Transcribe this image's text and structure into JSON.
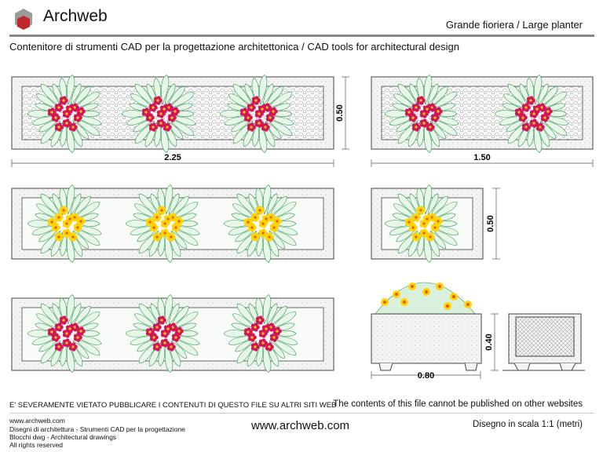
{
  "header": {
    "logo_text": "Archweb",
    "sheet_title": "Grande fioriera  /  Large planter",
    "subtitle": "Contenitore di strumenti CAD per la progettazione architettonica  /  CAD tools for architectural design"
  },
  "dimensions": {
    "top_large_width": "2.25",
    "top_depth": "0.50",
    "top_small_width": "1.50",
    "small_depth": "0.50",
    "elev_height": "0.40",
    "elev_width": "0.80"
  },
  "colors": {
    "pink_flower": "#d4145a",
    "yellow_flower": "#ffd400",
    "flower_center": "#e85a00",
    "leaf": "#2e9a4e",
    "concrete": "#f2f2f2",
    "logo_red": "#c0272d"
  },
  "footer": {
    "warning_it": "E' SEVERAMENTE VIETATO PUBBLICARE I CONTENUTI DI QUESTO FILE SU ALTRI SITI WEB",
    "warning_en": "The contents of this file cannot be published on other websites",
    "lines": [
      "www.archweb.com",
      "Disegni di architettura - Strumenti CAD  per la progettazione",
      "Blocchi dwg - Architectural drawings",
      "All rights reserved"
    ],
    "site": "www.archweb.com",
    "scale": "Disegno in scala 1:1 (metri)"
  }
}
